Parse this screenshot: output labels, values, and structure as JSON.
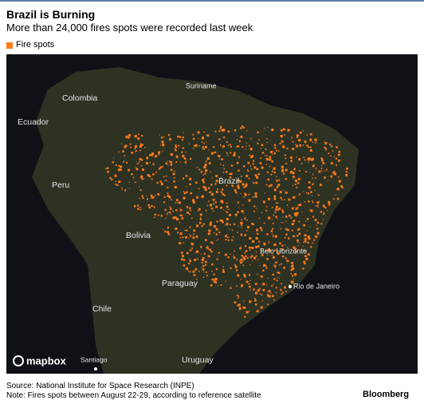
{
  "header": {
    "title": "Brazil is Burning",
    "subtitle": "More than 24,000 fires spots were recorded last week"
  },
  "legend": {
    "label": "Fire spots"
  },
  "map": {
    "labels": [
      "Colombia",
      "Suriname",
      "Ecuador",
      "Brazil",
      "Peru",
      "Bolivia",
      "Belo Horizonte",
      "Paraguay",
      "Rio de Janeiro",
      "Chile",
      "Santiago",
      "Uruguay"
    ],
    "attribution": "mapbox"
  },
  "footer": {
    "source": "Source: National Institute for Space Research (INPE)",
    "note": "Note: Fires spots between August 22-29, according to reference satellite",
    "brand": "Bloomberg"
  }
}
